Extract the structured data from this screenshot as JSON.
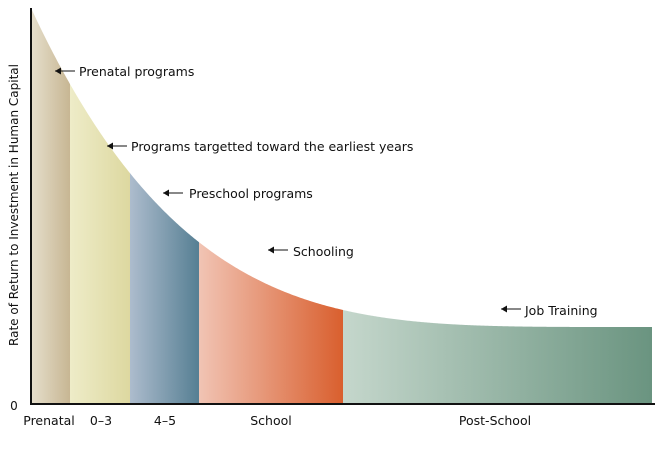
{
  "chart_data": {
    "type": "area",
    "title": "",
    "ylabel": "Rate of Return to Investment in Human Capital",
    "xlabel": "",
    "y_tick_labels": [
      "0"
    ],
    "grid": false,
    "categories": [
      "Prenatal",
      "0–3",
      "4–5",
      "School",
      "Post-School"
    ],
    "segments": [
      {
        "category": "Prenatal",
        "colors": [
          "#e6dfcc",
          "#c7b693"
        ]
      },
      {
        "category": "0–3",
        "colors": [
          "#eeecc8",
          "#ddd8a0"
        ]
      },
      {
        "category": "4–5",
        "colors": [
          "#adbccd",
          "#567f93"
        ]
      },
      {
        "category": "School",
        "colors": [
          "#f1c4b4",
          "#d95f2e"
        ]
      },
      {
        "category": "Post-School",
        "colors": [
          "#c5d7cc",
          "#6a9480"
        ]
      }
    ],
    "annotations": [
      "Prenatal programs",
      "Programs targetted toward the earliest years",
      "Preschool programs",
      "Schooling",
      "Job Training"
    ]
  }
}
